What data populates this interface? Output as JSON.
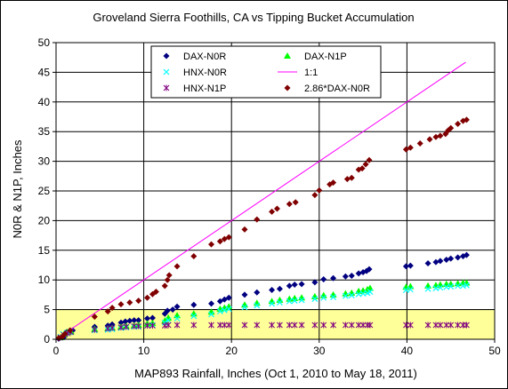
{
  "chart_data": {
    "type": "scatter",
    "title": "Groveland Sierra Foothills, CA  vs Tipping Bucket Accumulation",
    "xlabel": "MAP893 Rainfall, Inches (Oct 1, 2010 to May 18, 2011)",
    "ylabel": "N0R & N1P, Inches",
    "xlim": [
      0,
      50
    ],
    "ylim": [
      0,
      50
    ],
    "x_ticks": [
      "0",
      "10",
      "20",
      "30",
      "40",
      "50"
    ],
    "y_ticks": [
      "0",
      "5",
      "10",
      "15",
      "20",
      "25",
      "30",
      "35",
      "40",
      "45",
      "50"
    ],
    "grid": true,
    "legend_position": "top-center",
    "colors": {
      "plot_bg": "#ffff99",
      "dax_n0r": "#000080",
      "dax_n1p": "#00ff00",
      "hnx_n0r": "#00ffff",
      "one_to_one": "#ff00ff",
      "hnx_n1p": "#800080",
      "scaled_dax_n0r": "#800000"
    },
    "series": [
      {
        "name": "DAX-N0R",
        "marker": "diamond",
        "points": [
          [
            0.3,
            0.1
          ],
          [
            0.7,
            0.3
          ],
          [
            1.0,
            0.5
          ],
          [
            1.2,
            1.2
          ],
          [
            1.6,
            1.4
          ],
          [
            1.9,
            1.5
          ],
          [
            4.4,
            2.1
          ],
          [
            5.9,
            2.3
          ],
          [
            6.4,
            2.5
          ],
          [
            7.4,
            2.8
          ],
          [
            7.9,
            3.0
          ],
          [
            8.4,
            3.1
          ],
          [
            8.9,
            3.2
          ],
          [
            9.4,
            3.2
          ],
          [
            10.4,
            3.5
          ],
          [
            11.0,
            3.6
          ],
          [
            12.4,
            4.3
          ],
          [
            12.7,
            4.8
          ],
          [
            13.3,
            5.0
          ],
          [
            13.8,
            5.5
          ],
          [
            15.7,
            5.8
          ],
          [
            17.7,
            6.0
          ],
          [
            18.7,
            6.4
          ],
          [
            19.2,
            6.7
          ],
          [
            19.7,
            7.0
          ],
          [
            21.5,
            7.5
          ],
          [
            22.9,
            7.9
          ],
          [
            24.6,
            8.3
          ],
          [
            25.5,
            8.5
          ],
          [
            26.6,
            9.0
          ],
          [
            27.2,
            9.2
          ],
          [
            28.0,
            9.3
          ],
          [
            29.5,
            9.6
          ],
          [
            30.5,
            10.1
          ],
          [
            31.6,
            10.3
          ],
          [
            33.0,
            10.6
          ],
          [
            33.7,
            10.7
          ],
          [
            34.5,
            11.1
          ],
          [
            35.0,
            11.3
          ],
          [
            35.4,
            11.5
          ],
          [
            35.7,
            11.8
          ],
          [
            39.9,
            12.3
          ],
          [
            40.4,
            12.4
          ],
          [
            42.4,
            12.8
          ],
          [
            43.3,
            13.0
          ],
          [
            43.8,
            13.2
          ],
          [
            44.5,
            13.4
          ],
          [
            45.0,
            13.6
          ],
          [
            45.8,
            13.8
          ],
          [
            46.4,
            14.0
          ],
          [
            46.8,
            14.2
          ]
        ]
      },
      {
        "name": "DAX-N1P",
        "marker": "triangle",
        "points": [
          [
            0.6,
            0.3
          ],
          [
            0.9,
            0.8
          ],
          [
            1.3,
            1.2
          ],
          [
            1.7,
            1.3
          ],
          [
            4.4,
            1.7
          ],
          [
            5.9,
            1.8
          ],
          [
            6.4,
            1.9
          ],
          [
            7.4,
            2.1
          ],
          [
            8.0,
            2.2
          ],
          [
            8.9,
            2.3
          ],
          [
            9.4,
            2.4
          ],
          [
            10.4,
            2.6
          ],
          [
            11.0,
            2.7
          ],
          [
            12.4,
            3.1
          ],
          [
            12.8,
            3.6
          ],
          [
            13.8,
            4.0
          ],
          [
            15.7,
            4.3
          ],
          [
            17.7,
            4.6
          ],
          [
            18.7,
            5.1
          ],
          [
            19.2,
            5.3
          ],
          [
            19.7,
            5.5
          ],
          [
            21.5,
            5.8
          ],
          [
            22.9,
            6.1
          ],
          [
            24.6,
            6.4
          ],
          [
            25.5,
            6.6
          ],
          [
            26.6,
            6.8
          ],
          [
            27.2,
            6.9
          ],
          [
            28.0,
            7.0
          ],
          [
            29.5,
            7.2
          ],
          [
            30.5,
            7.4
          ],
          [
            31.6,
            7.5
          ],
          [
            33.0,
            7.7
          ],
          [
            33.7,
            7.8
          ],
          [
            34.5,
            8.1
          ],
          [
            35.0,
            8.2
          ],
          [
            35.5,
            8.4
          ],
          [
            35.8,
            8.6
          ],
          [
            39.9,
            8.8
          ],
          [
            40.4,
            8.9
          ],
          [
            42.4,
            9.0
          ],
          [
            43.3,
            9.1
          ],
          [
            43.8,
            9.2
          ],
          [
            44.5,
            9.3
          ],
          [
            45.0,
            9.3
          ],
          [
            45.8,
            9.4
          ],
          [
            46.4,
            9.5
          ],
          [
            46.8,
            9.5
          ]
        ]
      },
      {
        "name": "HNX-N0R",
        "marker": "x",
        "points": [
          [
            0.5,
            0.4
          ],
          [
            0.8,
            0.9
          ],
          [
            1.2,
            1.1
          ],
          [
            1.6,
            1.2
          ],
          [
            4.4,
            1.5
          ],
          [
            5.9,
            1.6
          ],
          [
            6.4,
            1.7
          ],
          [
            7.4,
            1.9
          ],
          [
            8.0,
            2.0
          ],
          [
            8.9,
            2.1
          ],
          [
            9.4,
            2.1
          ],
          [
            10.4,
            2.3
          ],
          [
            11.0,
            2.4
          ],
          [
            12.4,
            2.8
          ],
          [
            12.8,
            3.2
          ],
          [
            13.8,
            3.5
          ],
          [
            15.7,
            3.9
          ],
          [
            17.7,
            4.2
          ],
          [
            18.7,
            4.7
          ],
          [
            19.2,
            4.9
          ],
          [
            19.7,
            5.1
          ],
          [
            21.5,
            5.4
          ],
          [
            22.9,
            5.7
          ],
          [
            24.6,
            6.0
          ],
          [
            25.5,
            6.2
          ],
          [
            26.6,
            6.4
          ],
          [
            27.2,
            6.5
          ],
          [
            28.0,
            6.6
          ],
          [
            29.5,
            6.8
          ],
          [
            30.5,
            7.0
          ],
          [
            31.6,
            7.1
          ],
          [
            33.0,
            7.3
          ],
          [
            33.7,
            7.4
          ],
          [
            34.5,
            7.6
          ],
          [
            35.0,
            7.7
          ],
          [
            35.5,
            7.8
          ],
          [
            35.8,
            8.0
          ],
          [
            39.9,
            8.3
          ],
          [
            40.4,
            8.4
          ],
          [
            42.4,
            8.5
          ],
          [
            43.3,
            8.6
          ],
          [
            43.8,
            8.7
          ],
          [
            44.5,
            8.8
          ],
          [
            45.0,
            8.9
          ],
          [
            45.8,
            9.0
          ],
          [
            46.4,
            9.0
          ],
          [
            46.8,
            9.1
          ]
        ]
      },
      {
        "name": "1:1",
        "marker": "line",
        "points": [
          [
            0,
            0
          ],
          [
            46.7,
            46.7
          ]
        ]
      },
      {
        "name": "HNX-N1P",
        "marker": "star",
        "points": [
          [
            0.5,
            0.3
          ],
          [
            0.9,
            0.7
          ],
          [
            1.3,
            1.0
          ],
          [
            1.7,
            1.2
          ],
          [
            4.4,
            1.6
          ],
          [
            5.9,
            1.8
          ],
          [
            6.4,
            1.9
          ],
          [
            7.4,
            2.0
          ],
          [
            8.0,
            2.1
          ],
          [
            8.9,
            2.2
          ],
          [
            9.4,
            2.2
          ],
          [
            10.4,
            2.3
          ],
          [
            11.0,
            2.3
          ],
          [
            12.4,
            2.3
          ],
          [
            12.8,
            2.4
          ],
          [
            13.8,
            2.4
          ],
          [
            15.7,
            2.4
          ],
          [
            17.7,
            2.4
          ],
          [
            18.7,
            2.4
          ],
          [
            19.2,
            2.4
          ],
          [
            19.7,
            2.4
          ],
          [
            21.5,
            2.4
          ],
          [
            22.9,
            2.4
          ],
          [
            24.6,
            2.4
          ],
          [
            25.5,
            2.4
          ],
          [
            26.6,
            2.4
          ],
          [
            27.2,
            2.4
          ],
          [
            28.0,
            2.4
          ],
          [
            29.5,
            2.4
          ],
          [
            30.5,
            2.4
          ],
          [
            31.6,
            2.4
          ],
          [
            33.0,
            2.4
          ],
          [
            33.7,
            2.4
          ],
          [
            34.5,
            2.4
          ],
          [
            35.0,
            2.4
          ],
          [
            35.5,
            2.4
          ],
          [
            35.8,
            2.4
          ],
          [
            39.9,
            2.4
          ],
          [
            40.4,
            2.4
          ],
          [
            42.4,
            2.4
          ],
          [
            43.3,
            2.4
          ],
          [
            43.8,
            2.4
          ],
          [
            44.5,
            2.4
          ],
          [
            45.0,
            2.4
          ],
          [
            45.8,
            2.4
          ],
          [
            46.4,
            2.4
          ],
          [
            46.8,
            2.4
          ]
        ]
      },
      {
        "name": "2.86*DAX-N0R",
        "marker": "diamond",
        "points": [
          [
            0.3,
            0.2
          ],
          [
            0.7,
            0.4
          ],
          [
            1.0,
            0.9
          ],
          [
            1.6,
            1.5
          ],
          [
            4.4,
            3.8
          ],
          [
            5.9,
            4.7
          ],
          [
            6.4,
            5.3
          ],
          [
            7.4,
            5.9
          ],
          [
            8.4,
            6.2
          ],
          [
            9.4,
            6.5
          ],
          [
            10.4,
            7.0
          ],
          [
            11.0,
            7.6
          ],
          [
            11.4,
            8.0
          ],
          [
            12.4,
            9.0
          ],
          [
            12.7,
            10.0
          ],
          [
            12.9,
            10.8
          ],
          [
            13.8,
            12.3
          ],
          [
            15.7,
            14.0
          ],
          [
            17.7,
            16.0
          ],
          [
            18.7,
            16.5
          ],
          [
            19.2,
            16.9
          ],
          [
            19.7,
            17.2
          ],
          [
            21.5,
            18.5
          ],
          [
            22.9,
            20.2
          ],
          [
            24.6,
            21.5
          ],
          [
            25.2,
            22.0
          ],
          [
            26.6,
            22.8
          ],
          [
            27.3,
            23.1
          ],
          [
            29.5,
            24.3
          ],
          [
            30.0,
            25.1
          ],
          [
            31.2,
            26.1
          ],
          [
            31.6,
            26.4
          ],
          [
            33.2,
            27.0
          ],
          [
            33.7,
            27.2
          ],
          [
            34.5,
            28.6
          ],
          [
            34.9,
            28.8
          ],
          [
            35.3,
            29.5
          ],
          [
            35.7,
            30.2
          ],
          [
            39.9,
            32.0
          ],
          [
            40.4,
            32.3
          ],
          [
            41.5,
            33.0
          ],
          [
            42.6,
            33.7
          ],
          [
            43.3,
            34.1
          ],
          [
            43.8,
            34.3
          ],
          [
            44.4,
            34.6
          ],
          [
            44.7,
            35.2
          ],
          [
            45.0,
            35.6
          ],
          [
            45.8,
            36.3
          ],
          [
            46.4,
            36.8
          ],
          [
            46.8,
            37.0
          ]
        ]
      }
    ]
  }
}
